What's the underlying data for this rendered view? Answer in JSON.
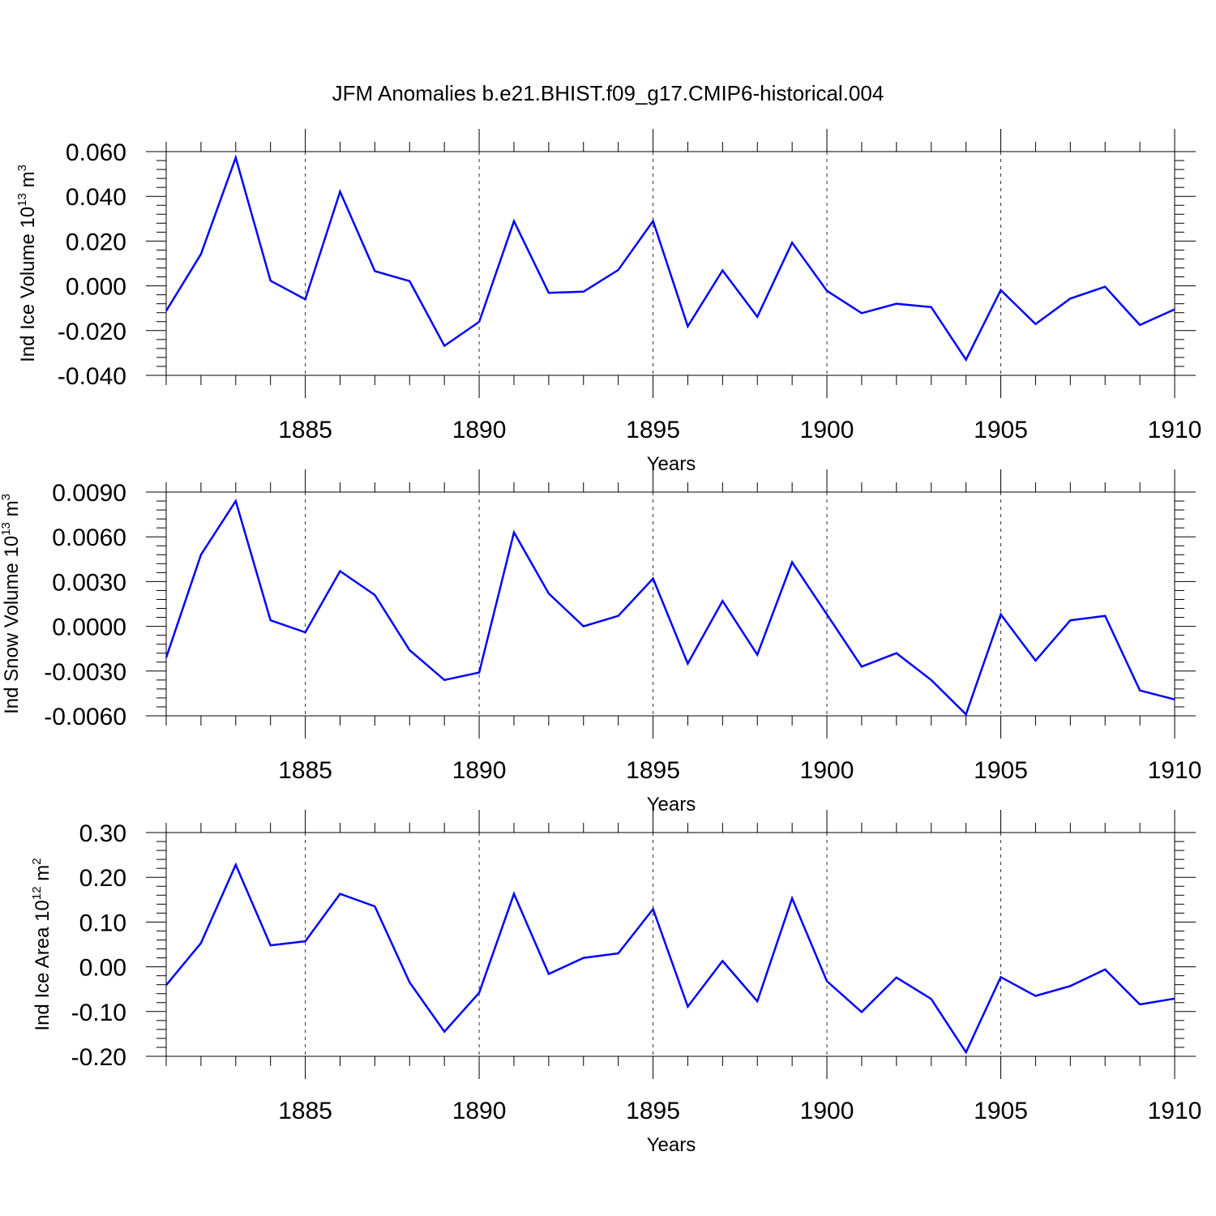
{
  "figure": {
    "title": "JFM Anomalies b.e21.BHIST.f09_g17.CMIP6-historical.004",
    "line_color": "#0000ff"
  },
  "chart_data": [
    {
      "type": "line",
      "xlabel": "Years",
      "ylabel_base": "Ind Ice Volume 10",
      "ylabel_exp": "13",
      "ylabel_unit": " m",
      "ylabel_unit_exp": "3",
      "xlim": [
        1881,
        1910
      ],
      "ylim": [
        -0.04,
        0.06
      ],
      "xticks": [
        1885,
        1890,
        1895,
        1900,
        1905,
        1910
      ],
      "xtick_labels": [
        "1885",
        "1890",
        "1895",
        "1900",
        "1905",
        "1910"
      ],
      "yticks": [
        0.06,
        0.04,
        0.02,
        0.0,
        -0.02,
        -0.04
      ],
      "ytick_labels": [
        "0.060",
        "0.040",
        "0.020",
        "0.000",
        "-0.020",
        "-0.040"
      ],
      "grid": "vertical dashed at major x ticks",
      "x": [
        1881,
        1882,
        1883,
        1884,
        1885,
        1886,
        1887,
        1888,
        1889,
        1890,
        1891,
        1892,
        1893,
        1894,
        1895,
        1896,
        1897,
        1898,
        1899,
        1900,
        1901,
        1902,
        1903,
        1904,
        1905,
        1906,
        1907,
        1908,
        1909,
        1910
      ],
      "values": [
        -0.0112,
        0.0142,
        0.0573,
        0.0023,
        -0.006,
        0.0421,
        0.0066,
        0.0021,
        -0.0268,
        -0.0161,
        0.0289,
        -0.0031,
        -0.0026,
        0.0071,
        0.029,
        -0.0181,
        0.0069,
        -0.0138,
        0.0193,
        -0.0022,
        -0.0122,
        -0.008,
        -0.0095,
        -0.033,
        -0.0019,
        -0.0171,
        -0.0057,
        -0.0004,
        -0.0175,
        -0.0105
      ]
    },
    {
      "type": "line",
      "xlabel": "Years",
      "ylabel_base": "Ind Snow Volume 10",
      "ylabel_exp": "13",
      "ylabel_unit": " m",
      "ylabel_unit_exp": "3",
      "xlim": [
        1881,
        1910
      ],
      "ylim": [
        -0.006,
        0.009
      ],
      "xticks": [
        1885,
        1890,
        1895,
        1900,
        1905,
        1910
      ],
      "xtick_labels": [
        "1885",
        "1890",
        "1895",
        "1900",
        "1905",
        "1910"
      ],
      "yticks": [
        0.009,
        0.006,
        0.003,
        0.0,
        -0.003,
        -0.006
      ],
      "ytick_labels": [
        "0.0090",
        "0.0060",
        "0.0030",
        "0.0000",
        "-0.0030",
        "-0.0060"
      ],
      "grid": "vertical dashed at major x ticks",
      "x": [
        1881,
        1882,
        1883,
        1884,
        1885,
        1886,
        1887,
        1888,
        1889,
        1890,
        1891,
        1892,
        1893,
        1894,
        1895,
        1896,
        1897,
        1898,
        1899,
        1900,
        1901,
        1902,
        1903,
        1904,
        1905,
        1906,
        1907,
        1908,
        1909,
        1910
      ],
      "values": [
        -0.0021,
        0.0048,
        0.0084,
        0.0004,
        -0.0004,
        0.0037,
        0.0021,
        -0.0016,
        -0.0036,
        -0.0031,
        0.0063,
        0.0022,
        0.0,
        0.0007,
        0.0032,
        -0.0025,
        0.0017,
        -0.0019,
        0.0043,
        0.0008,
        -0.0027,
        -0.0018,
        -0.0036,
        -0.0059,
        0.0008,
        -0.0023,
        0.0004,
        0.0007,
        -0.0043,
        -0.0049
      ]
    },
    {
      "type": "line",
      "xlabel": "Years",
      "ylabel_base": "Ind Ice Area 10",
      "ylabel_exp": "12",
      "ylabel_unit": " m",
      "ylabel_unit_exp": "2",
      "xlim": [
        1881,
        1910
      ],
      "ylim": [
        -0.2,
        0.3
      ],
      "xticks": [
        1885,
        1890,
        1895,
        1900,
        1905,
        1910
      ],
      "xtick_labels": [
        "1885",
        "1890",
        "1895",
        "1900",
        "1905",
        "1910"
      ],
      "yticks": [
        0.3,
        0.2,
        0.1,
        0.0,
        -0.1,
        -0.2
      ],
      "ytick_labels": [
        "0.30",
        "0.20",
        "0.10",
        "0.00",
        "-0.10",
        "-0.20"
      ],
      "grid": "vertical dashed at major x ticks",
      "x": [
        1881,
        1882,
        1883,
        1884,
        1885,
        1886,
        1887,
        1888,
        1889,
        1890,
        1891,
        1892,
        1893,
        1894,
        1895,
        1896,
        1897,
        1898,
        1899,
        1900,
        1901,
        1902,
        1903,
        1904,
        1905,
        1906,
        1907,
        1908,
        1909,
        1910
      ],
      "values": [
        -0.041,
        0.053,
        0.228,
        0.048,
        0.057,
        0.163,
        0.135,
        -0.035,
        -0.145,
        -0.058,
        0.163,
        -0.016,
        0.02,
        0.03,
        0.129,
        -0.089,
        0.013,
        -0.077,
        0.153,
        -0.032,
        -0.101,
        -0.024,
        -0.072,
        -0.191,
        -0.023,
        -0.065,
        -0.043,
        -0.006,
        -0.084,
        -0.071
      ]
    }
  ]
}
